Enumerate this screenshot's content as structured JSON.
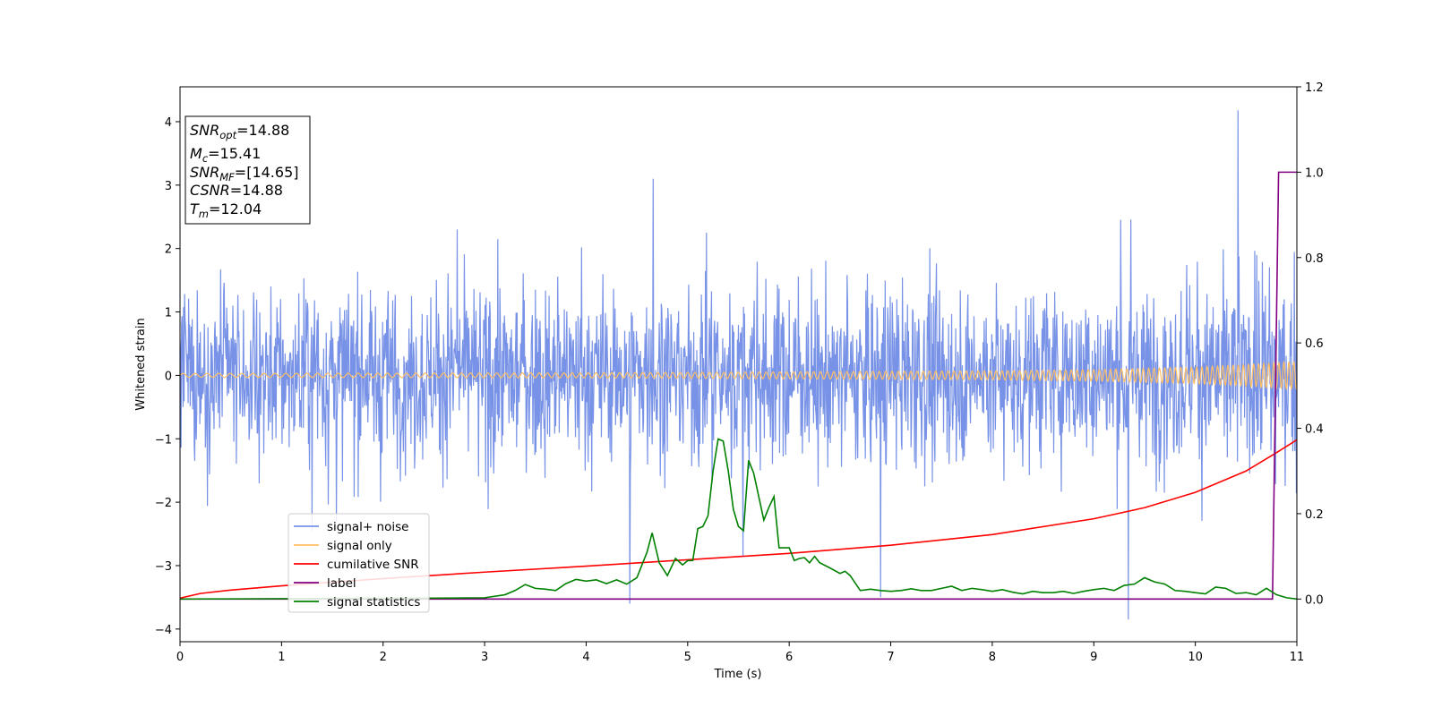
{
  "chart_data": {
    "type": "line",
    "xlabel": "Time (s)",
    "ylabel": "Whitened strain",
    "xlim": [
      0,
      11
    ],
    "ylim": [
      -4.2,
      4.55
    ],
    "y2lim": [
      -0.1,
      1.2
    ],
    "xticks": [
      "0",
      "1",
      "2",
      "3",
      "4",
      "5",
      "6",
      "7",
      "8",
      "9",
      "10",
      "11"
    ],
    "yticks": [
      "−4",
      "−3",
      "−2",
      "−1",
      "0",
      "1",
      "2",
      "3",
      "4"
    ],
    "y2ticks": [
      "0.0",
      "0.2",
      "0.4",
      "0.6",
      "0.8",
      "1.0",
      "1.2"
    ],
    "grid": false,
    "legend_placement": "lower-left",
    "annotation": [
      {
        "var": "SNR",
        "sub": "opt",
        "text": "=14.88"
      },
      {
        "var": "M",
        "sub": "c",
        "text": "=15.41"
      },
      {
        "var": "SNR",
        "sub": "MF",
        "text": "=[14.65]"
      },
      {
        "var": "CSNR",
        "sub": "",
        "text": "=14.88"
      },
      {
        "var": "T",
        "sub": "m",
        "text": "=12.04"
      }
    ],
    "series": [
      {
        "name": "signal+ noise",
        "axis": "left",
        "color": "#7792e6",
        "description_envelope": {
          "typical_upper": 1.6,
          "typical_lower": -1.6,
          "notable_peaks": [
            [
              10.42,
              4.18
            ],
            [
              4.66,
              3.1
            ],
            [
              4.43,
              -3.6
            ],
            [
              9.34,
              -3.85
            ],
            [
              6.9,
              -3.5
            ]
          ]
        }
      },
      {
        "name": "signal only",
        "axis": "left",
        "color": "#ffbf66",
        "envelope": {
          "x": [
            0,
            4,
            8,
            9,
            10,
            10.5,
            11
          ],
          "amp": [
            0.03,
            0.04,
            0.07,
            0.09,
            0.13,
            0.17,
            0.22
          ]
        }
      },
      {
        "name": "cumilative SNR",
        "axis": "right",
        "color": "#ff0000",
        "x": [
          0,
          0.2,
          0.5,
          1,
          2,
          3,
          4,
          5,
          6,
          7,
          8,
          9,
          9.5,
          10,
          10.5,
          10.8,
          11
        ],
        "y": [
          0.002,
          0.013,
          0.021,
          0.031,
          0.048,
          0.063,
          0.077,
          0.092,
          0.107,
          0.126,
          0.151,
          0.188,
          0.214,
          0.25,
          0.3,
          0.343,
          0.373
        ]
      },
      {
        "name": "label",
        "axis": "right",
        "color": "#800080",
        "x": [
          0,
          10.76,
          10.82,
          11
        ],
        "y": [
          0.0,
          0.0,
          1.0,
          1.0
        ]
      },
      {
        "name": "signal statistics",
        "axis": "right",
        "color": "#008000",
        "x": [
          0,
          2.5,
          3.0,
          3.2,
          3.3,
          3.4,
          3.5,
          3.6,
          3.7,
          3.8,
          3.9,
          4.0,
          4.1,
          4.2,
          4.3,
          4.4,
          4.5,
          4.6,
          4.65,
          4.72,
          4.8,
          4.88,
          4.95,
          5.0,
          5.05,
          5.1,
          5.15,
          5.2,
          5.25,
          5.3,
          5.35,
          5.4,
          5.45,
          5.5,
          5.55,
          5.6,
          5.65,
          5.7,
          5.75,
          5.8,
          5.85,
          5.9,
          6.0,
          6.05,
          6.1,
          6.15,
          6.2,
          6.25,
          6.3,
          6.4,
          6.5,
          6.55,
          6.6,
          6.7,
          6.8,
          6.9,
          7.0,
          7.1,
          7.2,
          7.3,
          7.4,
          7.5,
          7.6,
          7.7,
          7.8,
          7.9,
          8.0,
          8.1,
          8.2,
          8.3,
          8.4,
          8.5,
          8.6,
          8.7,
          8.8,
          8.9,
          9.0,
          9.1,
          9.2,
          9.3,
          9.4,
          9.5,
          9.6,
          9.7,
          9.8,
          9.9,
          10.0,
          10.1,
          10.2,
          10.3,
          10.4,
          10.5,
          10.6,
          10.7,
          10.8,
          10.9,
          11.0
        ],
        "y": [
          0.0,
          0.002,
          0.003,
          0.01,
          0.02,
          0.034,
          0.025,
          0.023,
          0.02,
          0.036,
          0.046,
          0.042,
          0.045,
          0.036,
          0.045,
          0.035,
          0.05,
          0.11,
          0.155,
          0.085,
          0.055,
          0.095,
          0.08,
          0.09,
          0.09,
          0.165,
          0.17,
          0.195,
          0.3,
          0.375,
          0.37,
          0.3,
          0.21,
          0.17,
          0.16,
          0.325,
          0.295,
          0.24,
          0.185,
          0.215,
          0.24,
          0.12,
          0.12,
          0.09,
          0.095,
          0.097,
          0.085,
          0.1,
          0.085,
          0.073,
          0.06,
          0.065,
          0.055,
          0.02,
          0.023,
          0.02,
          0.018,
          0.02,
          0.024,
          0.02,
          0.02,
          0.025,
          0.03,
          0.02,
          0.025,
          0.022,
          0.018,
          0.022,
          0.016,
          0.012,
          0.018,
          0.015,
          0.015,
          0.018,
          0.013,
          0.018,
          0.022,
          0.025,
          0.02,
          0.032,
          0.035,
          0.05,
          0.04,
          0.035,
          0.02,
          0.018,
          0.015,
          0.012,
          0.028,
          0.025,
          0.013,
          0.015,
          0.01,
          0.025,
          0.01,
          0.003,
          0.0
        ]
      }
    ]
  }
}
